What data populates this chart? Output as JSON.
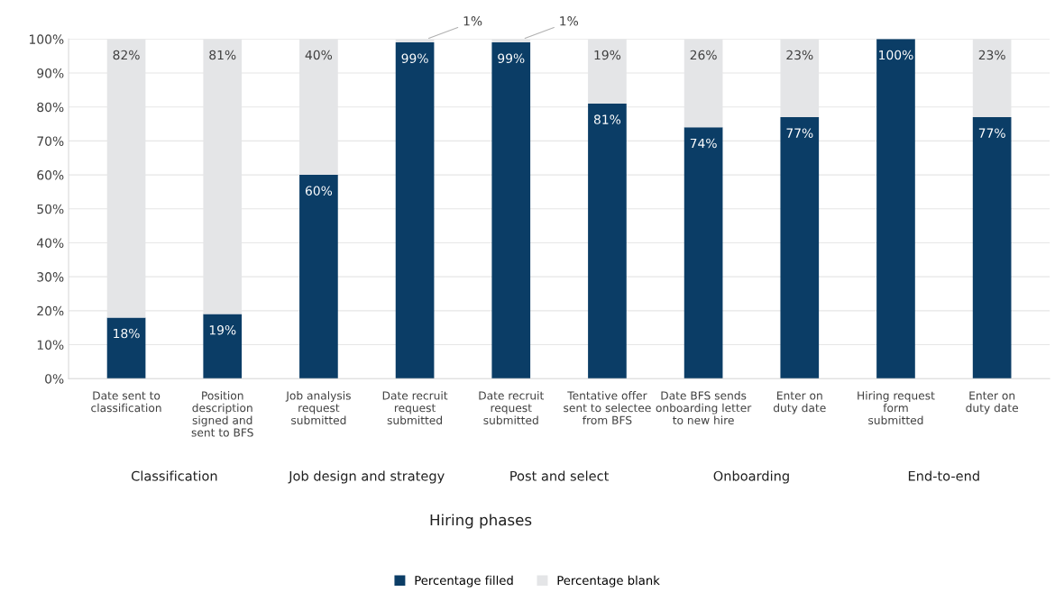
{
  "chart_data": {
    "type": "bar",
    "stacked": true,
    "categories": [
      "Date sent to\nclassification",
      "Position\ndescription\nsigned and\nsent to BFS",
      "Job analysis\nrequest\nsubmitted",
      "Date recruit\nrequest\nsubmitted",
      "Date recruit\nrequest\nsubmitted",
      "Tentative offer\nsent to selectee\nfrom BFS",
      "Date BFS sends\nonboarding letter\nto new hire",
      "Enter on\nduty date",
      "Hiring request\nform\nsubmitted",
      "Enter on\nduty date"
    ],
    "series": [
      {
        "name": "Percentage filled",
        "color": "#0b3d66",
        "values": [
          18,
          19,
          60,
          99,
          99,
          81,
          74,
          77,
          100,
          77
        ],
        "value_labels": [
          "18%",
          "19%",
          "60%",
          "99%",
          "99%",
          "81%",
          "74%",
          "77%",
          "100%",
          "77%"
        ]
      },
      {
        "name": "Percentage blank",
        "color": "#e4e5e7",
        "values": [
          82,
          81,
          40,
          1,
          1,
          19,
          26,
          23,
          0,
          23
        ],
        "value_labels": [
          "82%",
          "81%",
          "40%",
          "1%",
          "1%",
          "19%",
          "26%",
          "23%",
          null,
          "23%"
        ]
      }
    ],
    "annotations": [
      "Classification",
      "Job design and strategy",
      "Post and select",
      "Onboarding",
      "End-to-end",
      "Hiring phases"
    ],
    "ylim": [
      0,
      100
    ],
    "yticks": [
      {
        "value": 0,
        "label": "0%"
      },
      {
        "value": 10,
        "label": "10%"
      },
      {
        "value": 20,
        "label": "20%"
      },
      {
        "value": 30,
        "label": "30%"
      },
      {
        "value": 40,
        "label": "40%"
      },
      {
        "value": 50,
        "label": "50%"
      },
      {
        "value": 60,
        "label": "60%"
      },
      {
        "value": 70,
        "label": "70%"
      },
      {
        "value": 80,
        "label": "80%"
      },
      {
        "value": 90,
        "label": "90%"
      },
      {
        "value": 100,
        "label": "100%"
      }
    ],
    "grid": "y",
    "legend": "bottom"
  }
}
